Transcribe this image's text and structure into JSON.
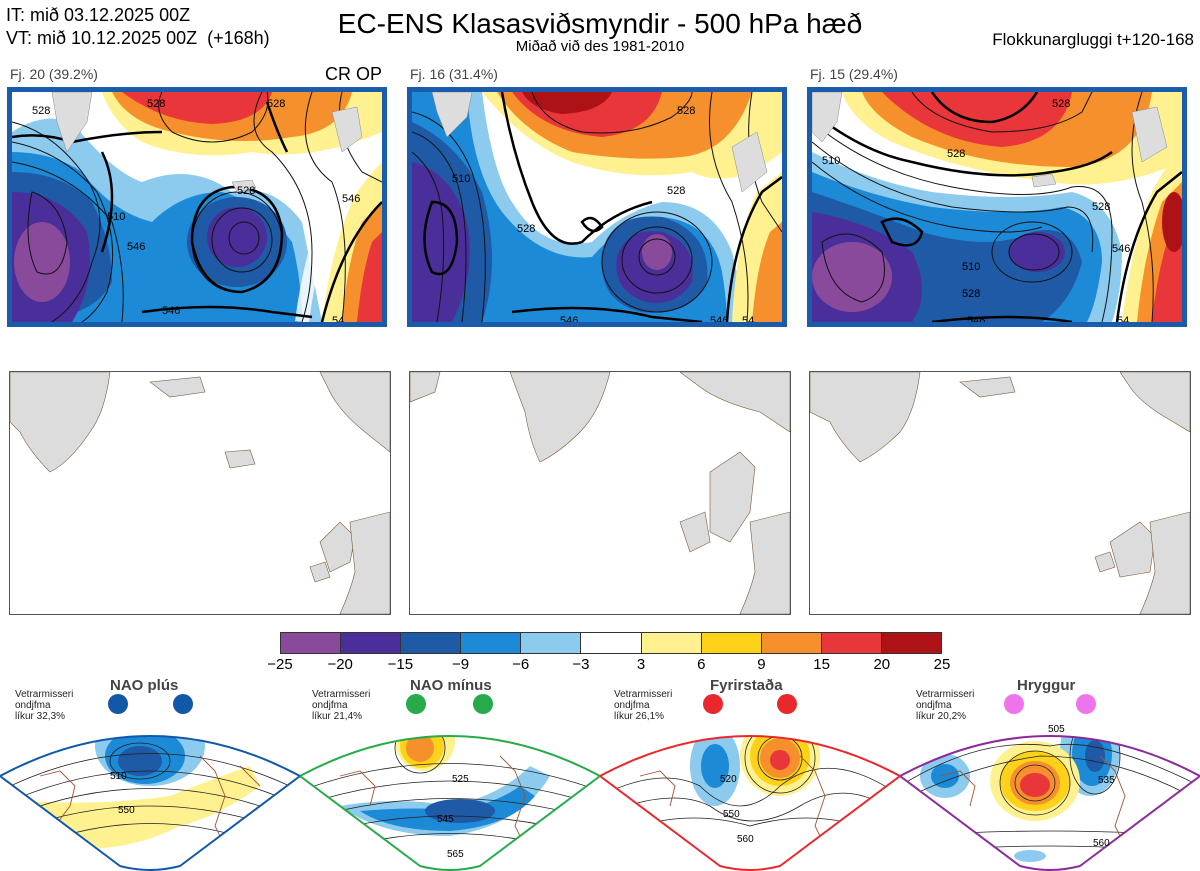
{
  "header": {
    "it_line": "IT: mið 03.12.2025 00Z",
    "vt_line": "VT: mið 10.12.2025 00Z  (+168h)",
    "title": "EC-ENS Klasasviðsmyndir - 500 hPa hæð",
    "subtitle": "Miðað við des 1981-2010",
    "window": "Flokkunargluggi t+120-168"
  },
  "clusters": [
    {
      "label": "Fj. 20 (39.2%)",
      "extra": "CR OP",
      "contours": [
        "528",
        "528",
        "528",
        "510",
        "528",
        "546",
        "546",
        "54",
        "546"
      ]
    },
    {
      "label": "Fj. 16 (31.4%)",
      "extra": "",
      "contours": [
        "528",
        "510",
        "528",
        "528",
        "546",
        "54",
        "546"
      ]
    },
    {
      "label": "Fj. 15 (29.4%)",
      "extra": "",
      "contours": [
        "528",
        "528",
        "510",
        "528",
        "510",
        "528",
        "546",
        "546",
        "54"
      ]
    }
  ],
  "colorbar": {
    "colors": [
      "#8a4a9c",
      "#4a2f9a",
      "#1f5aa6",
      "#1c8ad6",
      "#8ccaee",
      "#ffffff",
      "#fff18f",
      "#ffd21a",
      "#f5902c",
      "#e8363a",
      "#ad1217"
    ],
    "ticks": [
      "−25",
      "−20",
      "−15",
      "−9",
      "−6",
      "−3",
      "3",
      "6",
      "9",
      "15",
      "20",
      "25"
    ]
  },
  "regimes": [
    {
      "name": "NAO plús",
      "note": [
        "Vetrarmisseri",
        "ondjfma",
        "líkur 32,3%"
      ],
      "dot_color": "#1158a8",
      "frame_color": "#1158a8",
      "labels": [
        "510",
        "550"
      ]
    },
    {
      "name": "NAO mínus",
      "note": [
        "Vetrarmisseri",
        "ondjfma",
        "líkur 21,4%"
      ],
      "dot_color": "#27ab4a",
      "frame_color": "#27ab4a",
      "labels": [
        "525",
        "545",
        "565"
      ]
    },
    {
      "name": "Fyrirstaða",
      "note": [
        "Vetrarmisseri",
        "ondjfma",
        "líkur 26,1%"
      ],
      "dot_color": "#e8282c",
      "frame_color": "#e8282c",
      "labels": [
        "520",
        "550",
        "560"
      ]
    },
    {
      "name": "Hryggur",
      "note": [
        "Vetrarmisseri",
        "ondjfma",
        "líkur 20,2%"
      ],
      "dot_color": "#ee74ee",
      "frame_color": "#8b2a9a",
      "labels": [
        "505",
        "535",
        "560"
      ]
    }
  ]
}
